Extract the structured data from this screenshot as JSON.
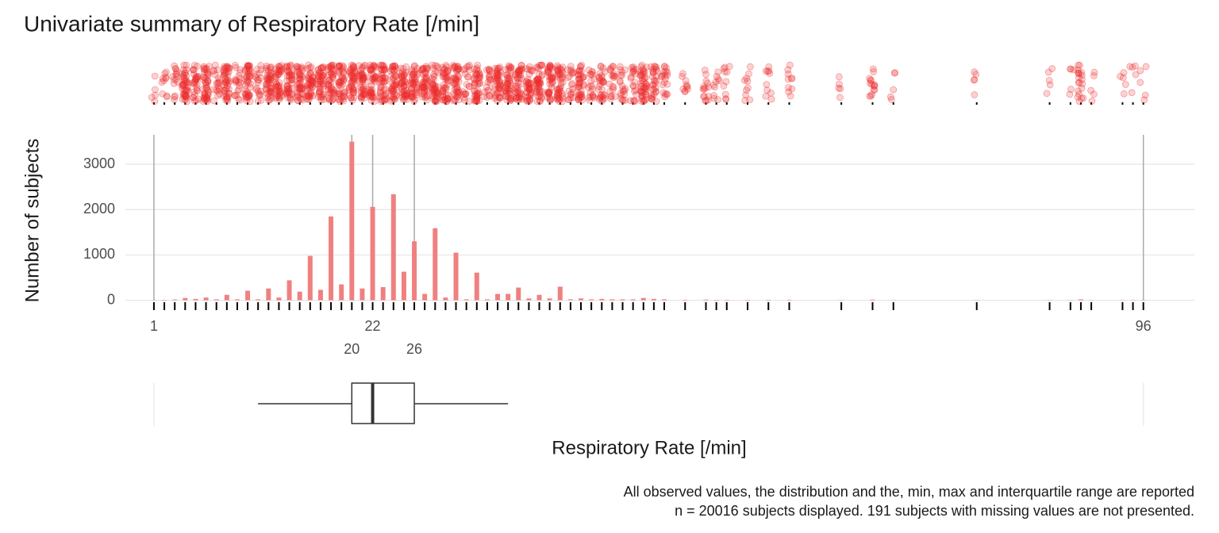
{
  "chart_data": {
    "type": "bar",
    "title": "Univariate summary of Respiratory Rate [/min]",
    "y_label": "Number of subjects",
    "x_label": "Respiratory Rate [/min]",
    "caption": [
      "All observed values, the distribution and the, min, max and interquartile range are reported",
      "n = 20016 subjects displayed. 191 subjects with missing values are not presented."
    ],
    "x": [
      1,
      2,
      3,
      4,
      5,
      6,
      7,
      8,
      9,
      10,
      11,
      12,
      13,
      14,
      15,
      16,
      17,
      18,
      19,
      20,
      21,
      22,
      23,
      24,
      25,
      26,
      27,
      28,
      29,
      30,
      31,
      32,
      33,
      34,
      35,
      36,
      37,
      38,
      39,
      40,
      41,
      42,
      43,
      44,
      45,
      46,
      47,
      48,
      49,
      50,
      52,
      54,
      55,
      56,
      58,
      60,
      62,
      67,
      70,
      72,
      80,
      87,
      89,
      90,
      91,
      94,
      95,
      96
    ],
    "values": [
      5,
      10,
      15,
      50,
      30,
      60,
      20,
      120,
      20,
      210,
      20,
      260,
      60,
      440,
      190,
      980,
      230,
      1850,
      350,
      3500,
      260,
      2060,
      290,
      2340,
      630,
      1300,
      140,
      1590,
      60,
      1050,
      20,
      610,
      20,
      140,
      140,
      280,
      40,
      120,
      40,
      300,
      20,
      40,
      20,
      30,
      20,
      20,
      20,
      50,
      30,
      20,
      10,
      15,
      10,
      10,
      10,
      10,
      10,
      5,
      15,
      5,
      5,
      5,
      5,
      20,
      5,
      5,
      5,
      5
    ],
    "color": "#f08080",
    "point_color": "#ee2c2c",
    "xlim": [
      -1.74,
      100.9
    ],
    "ylim": [
      -60,
      3650
    ],
    "yticks": [
      0,
      1000,
      2000,
      3000
    ],
    "grid": true,
    "summary": {
      "min": 1,
      "q1": 20,
      "median": 22,
      "q3": 26,
      "max": 96
    },
    "whiskers": [
      11,
      35
    ]
  }
}
